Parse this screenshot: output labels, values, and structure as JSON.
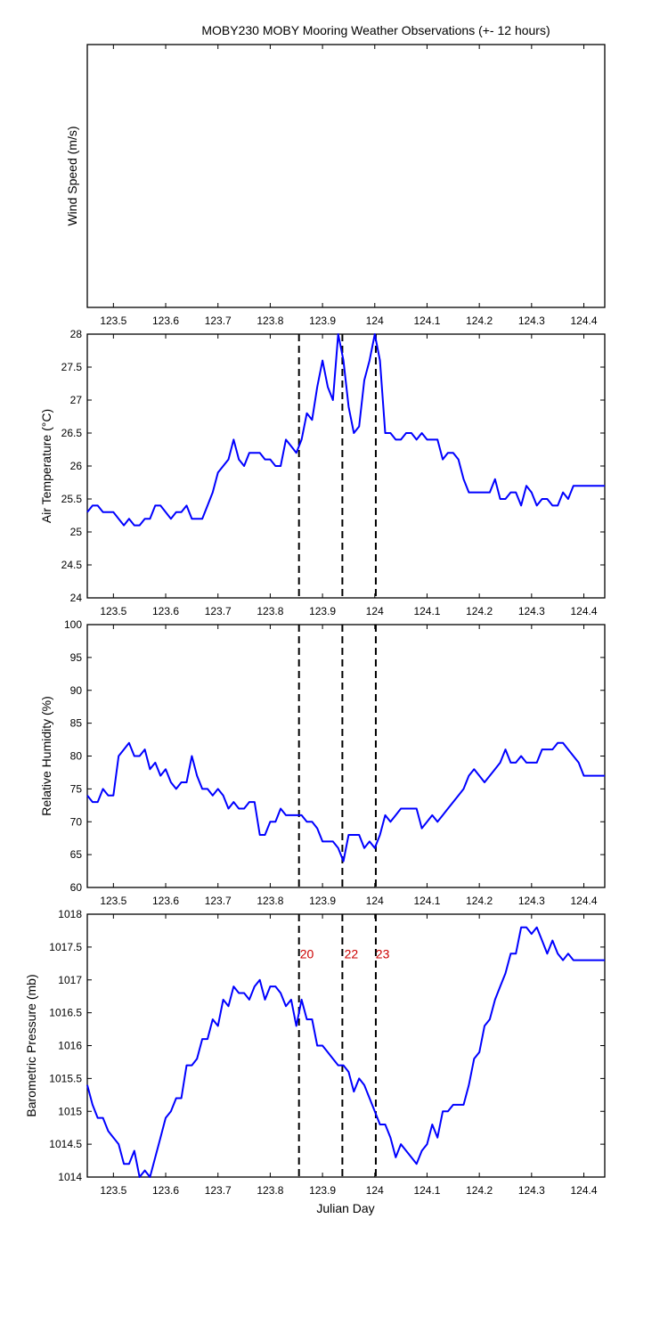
{
  "title": "MOBY230 MOBY Mooring Weather Observations (+- 12 hours)",
  "xlabel": "Julian Day",
  "colors": {
    "series": "#0000ff",
    "event_line": "#000000",
    "event_label": "#cc0000"
  },
  "chart_data": [
    {
      "type": "line",
      "ylabel": "Wind Speed (m/s)",
      "xlim": [
        123.45,
        124.44
      ],
      "ylim": null,
      "x_ticks": [
        123.5,
        123.6,
        123.7,
        123.8,
        123.9,
        124,
        124.1,
        124.2,
        124.3,
        124.4
      ],
      "x_tick_labels": [
        "123.5",
        "123.6",
        "123.7",
        "123.8",
        "123.9",
        "124",
        "124.1",
        "124.2",
        "124.3",
        "124.4"
      ],
      "y_ticks": [],
      "y_tick_labels": [],
      "show_event_lines": false,
      "series": []
    },
    {
      "type": "line",
      "ylabel": "Air Temperature (°C)",
      "xlim": [
        123.45,
        124.44
      ],
      "ylim": [
        24,
        28
      ],
      "x_ticks": [
        123.5,
        123.6,
        123.7,
        123.8,
        123.9,
        124,
        124.1,
        124.2,
        124.3,
        124.4
      ],
      "x_tick_labels": [
        "123.5",
        "123.6",
        "123.7",
        "123.8",
        "123.9",
        "124",
        "124.1",
        "124.2",
        "124.3",
        "124.4"
      ],
      "y_ticks": [
        24,
        24.5,
        25,
        25.5,
        26,
        26.5,
        27,
        27.5,
        28
      ],
      "y_tick_labels": [
        "24",
        "24.5",
        "25",
        "25.5",
        "26",
        "26.5",
        "27",
        "27.5",
        "28"
      ],
      "show_event_lines": true,
      "series": [
        {
          "x": [
            123.45,
            123.46,
            123.47,
            123.48,
            123.49,
            123.5,
            123.51,
            123.52,
            123.53,
            123.54,
            123.55,
            123.56,
            123.57,
            123.58,
            123.59,
            123.6,
            123.61,
            123.62,
            123.63,
            123.64,
            123.65,
            123.66,
            123.67,
            123.68,
            123.69,
            123.7,
            123.71,
            123.72,
            123.73,
            123.74,
            123.75,
            123.76,
            123.77,
            123.78,
            123.79,
            123.8,
            123.81,
            123.82,
            123.83,
            123.84,
            123.85,
            123.86,
            123.87,
            123.88,
            123.89,
            123.9,
            123.91,
            123.92,
            123.93,
            123.94,
            123.95,
            123.96,
            123.97,
            123.98,
            123.99,
            124.0,
            124.01,
            124.02,
            124.03,
            124.04,
            124.05,
            124.06,
            124.07,
            124.08,
            124.09,
            124.1,
            124.11,
            124.12,
            124.13,
            124.14,
            124.15,
            124.16,
            124.17,
            124.18,
            124.19,
            124.2,
            124.21,
            124.22,
            124.23,
            124.24,
            124.25,
            124.26,
            124.27,
            124.28,
            124.29,
            124.3,
            124.31,
            124.32,
            124.33,
            124.34,
            124.35,
            124.36,
            124.37,
            124.38,
            124.39,
            124.4,
            124.41,
            124.42,
            124.43,
            124.44
          ],
          "y": [
            25.3,
            25.4,
            25.4,
            25.3,
            25.3,
            25.3,
            25.2,
            25.1,
            25.2,
            25.1,
            25.1,
            25.2,
            25.2,
            25.4,
            25.4,
            25.3,
            25.2,
            25.3,
            25.3,
            25.4,
            25.2,
            25.2,
            25.2,
            25.4,
            25.6,
            25.9,
            26.0,
            26.1,
            26.4,
            26.1,
            26.0,
            26.2,
            26.2,
            26.2,
            26.1,
            26.1,
            26.0,
            26.0,
            26.4,
            26.3,
            26.2,
            26.4,
            26.8,
            26.7,
            27.2,
            27.6,
            27.2,
            27.0,
            28.0,
            27.6,
            26.9,
            26.5,
            26.6,
            27.3,
            27.6,
            28.0,
            27.6,
            26.5,
            26.5,
            26.4,
            26.4,
            26.5,
            26.5,
            26.4,
            26.5,
            26.4,
            26.4,
            26.4,
            26.1,
            26.2,
            26.2,
            26.1,
            25.8,
            25.6,
            25.6,
            25.6,
            25.6,
            25.6,
            25.8,
            25.5,
            25.5,
            25.6,
            25.6,
            25.4,
            25.7,
            25.6,
            25.4,
            25.5,
            25.5,
            25.4,
            25.4,
            25.6,
            25.5,
            25.7,
            25.7,
            25.7,
            25.7,
            25.7,
            25.7,
            25.7
          ]
        }
      ]
    },
    {
      "type": "line",
      "ylabel": "Relative Humidity (%)",
      "xlim": [
        123.45,
        124.44
      ],
      "ylim": [
        60,
        100
      ],
      "x_ticks": [
        123.5,
        123.6,
        123.7,
        123.8,
        123.9,
        124,
        124.1,
        124.2,
        124.3,
        124.4
      ],
      "x_tick_labels": [
        "123.5",
        "123.6",
        "123.7",
        "123.8",
        "123.9",
        "124",
        "124.1",
        "124.2",
        "124.3",
        "124.4"
      ],
      "y_ticks": [
        60,
        65,
        70,
        75,
        80,
        85,
        90,
        95,
        100
      ],
      "y_tick_labels": [
        "60",
        "65",
        "70",
        "75",
        "80",
        "85",
        "90",
        "95",
        "100"
      ],
      "show_event_lines": true,
      "series": [
        {
          "x": [
            123.45,
            123.46,
            123.47,
            123.48,
            123.49,
            123.5,
            123.51,
            123.52,
            123.53,
            123.54,
            123.55,
            123.56,
            123.57,
            123.58,
            123.59,
            123.6,
            123.61,
            123.62,
            123.63,
            123.64,
            123.65,
            123.66,
            123.67,
            123.68,
            123.69,
            123.7,
            123.71,
            123.72,
            123.73,
            123.74,
            123.75,
            123.76,
            123.77,
            123.78,
            123.79,
            123.8,
            123.81,
            123.82,
            123.83,
            123.84,
            123.85,
            123.86,
            123.87,
            123.88,
            123.89,
            123.9,
            123.91,
            123.92,
            123.93,
            123.94,
            123.95,
            123.96,
            123.97,
            123.98,
            123.99,
            124.0,
            124.01,
            124.02,
            124.03,
            124.04,
            124.05,
            124.06,
            124.07,
            124.08,
            124.09,
            124.1,
            124.11,
            124.12,
            124.13,
            124.14,
            124.15,
            124.16,
            124.17,
            124.18,
            124.19,
            124.2,
            124.21,
            124.22,
            124.23,
            124.24,
            124.25,
            124.26,
            124.27,
            124.28,
            124.29,
            124.3,
            124.31,
            124.32,
            124.33,
            124.34,
            124.35,
            124.36,
            124.37,
            124.38,
            124.39,
            124.4,
            124.41,
            124.42,
            124.43,
            124.44
          ],
          "y": [
            74,
            73,
            73,
            75,
            74,
            74,
            80,
            81,
            82,
            80,
            80,
            81,
            78,
            79,
            77,
            78,
            76,
            75,
            76,
            76,
            80,
            77,
            75,
            75,
            74,
            75,
            74,
            72,
            73,
            72,
            72,
            73,
            73,
            68,
            68,
            70,
            70,
            72,
            71,
            71,
            71,
            71,
            70,
            70,
            69,
            67,
            67,
            67,
            66,
            64,
            68,
            68,
            68,
            66,
            67,
            66,
            68,
            71,
            70,
            71,
            72,
            72,
            72,
            72,
            69,
            70,
            71,
            70,
            71,
            72,
            73,
            74,
            75,
            77,
            78,
            77,
            76,
            77,
            78,
            79,
            81,
            79,
            79,
            80,
            79,
            79,
            79,
            81,
            81,
            81,
            82,
            82,
            81,
            80,
            79,
            77,
            77,
            77,
            77,
            77
          ]
        }
      ]
    },
    {
      "type": "line",
      "ylabel": "Barometric Pressure (mb)",
      "xlim": [
        123.45,
        124.44
      ],
      "ylim": [
        1014,
        1018
      ],
      "x_ticks": [
        123.5,
        123.6,
        123.7,
        123.8,
        123.9,
        124,
        124.1,
        124.2,
        124.3,
        124.4
      ],
      "x_tick_labels": [
        "123.5",
        "123.6",
        "123.7",
        "123.8",
        "123.9",
        "124",
        "124.1",
        "124.2",
        "124.3",
        "124.4"
      ],
      "y_ticks": [
        1014,
        1014.5,
        1015,
        1015.5,
        1016,
        1016.5,
        1017,
        1017.5,
        1018
      ],
      "y_tick_labels": [
        "1014",
        "1014.5",
        "1015",
        "1015.5",
        "1016",
        "1016.5",
        "1017",
        "1017.5",
        "1018"
      ],
      "show_event_lines": true,
      "event_labels": [
        {
          "x": 123.87,
          "y": 1017.4,
          "text": "20"
        },
        {
          "x": 123.955,
          "y": 1017.4,
          "text": "22"
        },
        {
          "x": 124.015,
          "y": 1017.4,
          "text": "23"
        }
      ],
      "series": [
        {
          "x": [
            123.45,
            123.46,
            123.47,
            123.48,
            123.49,
            123.5,
            123.51,
            123.52,
            123.53,
            123.54,
            123.55,
            123.56,
            123.57,
            123.58,
            123.59,
            123.6,
            123.61,
            123.62,
            123.63,
            123.64,
            123.65,
            123.66,
            123.67,
            123.68,
            123.69,
            123.7,
            123.71,
            123.72,
            123.73,
            123.74,
            123.75,
            123.76,
            123.77,
            123.78,
            123.79,
            123.8,
            123.81,
            123.82,
            123.83,
            123.84,
            123.85,
            123.86,
            123.87,
            123.88,
            123.89,
            123.9,
            123.91,
            123.92,
            123.93,
            123.94,
            123.95,
            123.96,
            123.97,
            123.98,
            123.99,
            124.0,
            124.01,
            124.02,
            124.03,
            124.04,
            124.05,
            124.06,
            124.07,
            124.08,
            124.09,
            124.1,
            124.11,
            124.12,
            124.13,
            124.14,
            124.15,
            124.16,
            124.17,
            124.18,
            124.19,
            124.2,
            124.21,
            124.22,
            124.23,
            124.24,
            124.25,
            124.26,
            124.27,
            124.28,
            124.29,
            124.3,
            124.31,
            124.32,
            124.33,
            124.34,
            124.35,
            124.36,
            124.37,
            124.38,
            124.39,
            124.4,
            124.41,
            124.42,
            124.43,
            124.44
          ],
          "y": [
            1015.4,
            1015.1,
            1014.9,
            1014.9,
            1014.7,
            1014.6,
            1014.5,
            1014.2,
            1014.2,
            1014.4,
            1014.0,
            1014.1,
            1014.0,
            1014.3,
            1014.6,
            1014.9,
            1015.0,
            1015.2,
            1015.2,
            1015.7,
            1015.7,
            1015.8,
            1016.1,
            1016.1,
            1016.4,
            1016.3,
            1016.7,
            1016.6,
            1016.9,
            1016.8,
            1016.8,
            1016.7,
            1016.9,
            1017.0,
            1016.7,
            1016.9,
            1016.9,
            1016.8,
            1016.6,
            1016.7,
            1016.3,
            1016.7,
            1016.4,
            1016.4,
            1016.0,
            1016.0,
            1015.9,
            1015.8,
            1015.7,
            1015.7,
            1015.6,
            1015.3,
            1015.5,
            1015.4,
            1015.2,
            1015.0,
            1014.8,
            1014.8,
            1014.6,
            1014.3,
            1014.5,
            1014.4,
            1014.3,
            1014.2,
            1014.4,
            1014.5,
            1014.8,
            1014.6,
            1015.0,
            1015.0,
            1015.1,
            1015.1,
            1015.1,
            1015.4,
            1015.8,
            1015.9,
            1016.3,
            1016.4,
            1016.7,
            1016.9,
            1017.1,
            1017.4,
            1017.4,
            1017.8,
            1017.8,
            1017.7,
            1017.8,
            1017.6,
            1017.4,
            1017.6,
            1017.4,
            1017.3,
            1017.4,
            1017.3,
            1017.3,
            1017.3,
            1017.3,
            1017.3,
            1017.3,
            1017.3
          ]
        }
      ]
    }
  ],
  "event_lines_x": [
    123.855,
    123.938,
    124.002
  ]
}
